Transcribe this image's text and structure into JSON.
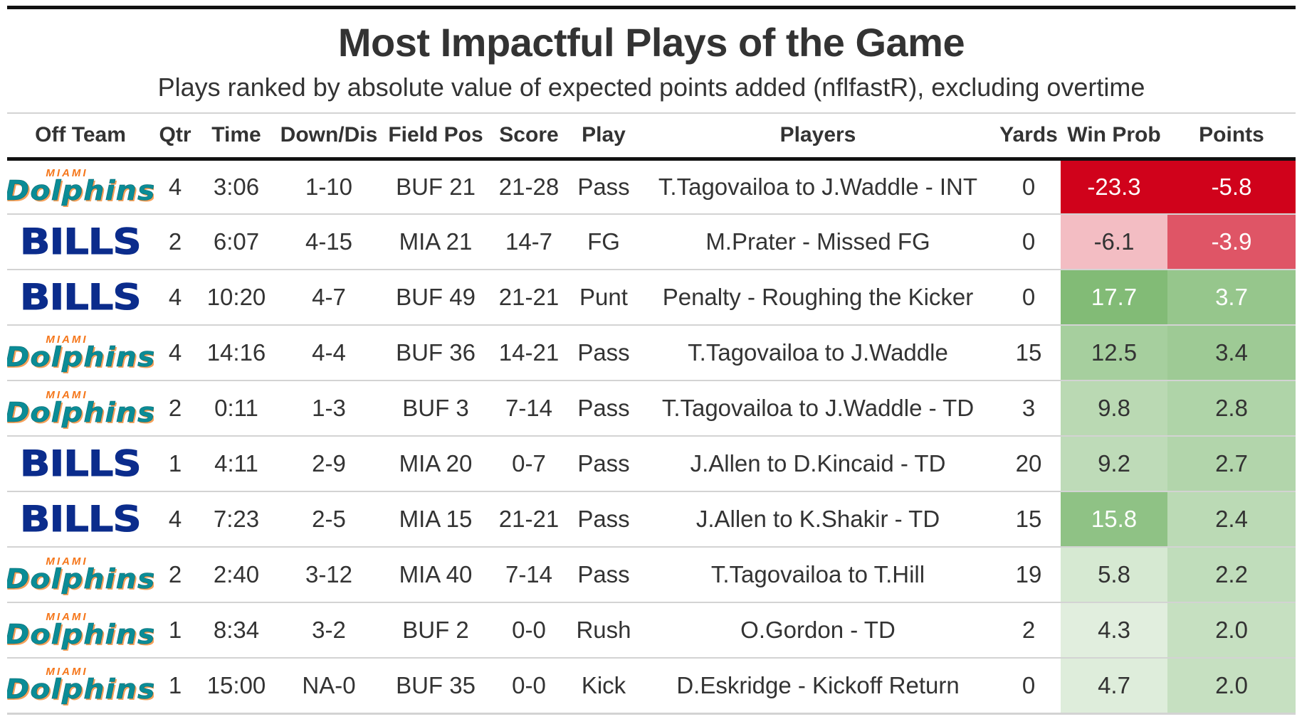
{
  "chart_data": {
    "type": "table",
    "title": "Most Impactful Plays of the Game",
    "subtitle": "Plays ranked by absolute value of expected points added (nflfastR), excluding overtime",
    "columns": [
      "Off Team",
      "Qtr",
      "Time",
      "Down/Dis",
      "Field Pos",
      "Score",
      "Play",
      "Players",
      "Yards",
      "Win Prob",
      "Points"
    ],
    "rows": [
      {
        "team": "MIAMI Dolphins",
        "team_key": "dolphins",
        "qtr": "4",
        "time": "3:06",
        "down": "1-10",
        "field": "BUF 21",
        "score": "21-28",
        "play": "Pass",
        "players": "T.Tagovailoa to J.Waddle - INT",
        "yards": "0",
        "wp": "-23.3",
        "pts": "-5.8"
      },
      {
        "team": "BILLS",
        "team_key": "bills",
        "qtr": "2",
        "time": "6:07",
        "down": "4-15",
        "field": "MIA 21",
        "score": "14-7",
        "play": "FG",
        "players": "M.Prater - Missed FG",
        "yards": "0",
        "wp": "-6.1",
        "pts": "-3.9"
      },
      {
        "team": "BILLS",
        "team_key": "bills",
        "qtr": "4",
        "time": "10:20",
        "down": "4-7",
        "field": "BUF 49",
        "score": "21-21",
        "play": "Punt",
        "players": "Penalty - Roughing the Kicker",
        "yards": "0",
        "wp": "17.7",
        "pts": "3.7"
      },
      {
        "team": "MIAMI Dolphins",
        "team_key": "dolphins",
        "qtr": "4",
        "time": "14:16",
        "down": "4-4",
        "field": "BUF 36",
        "score": "14-21",
        "play": "Pass",
        "players": "T.Tagovailoa to J.Waddle",
        "yards": "15",
        "wp": "12.5",
        "pts": "3.4"
      },
      {
        "team": "MIAMI Dolphins",
        "team_key": "dolphins",
        "qtr": "2",
        "time": "0:11",
        "down": "1-3",
        "field": "BUF 3",
        "score": "7-14",
        "play": "Pass",
        "players": "T.Tagovailoa to J.Waddle - TD",
        "yards": "3",
        "wp": "9.8",
        "pts": "2.8"
      },
      {
        "team": "BILLS",
        "team_key": "bills",
        "qtr": "1",
        "time": "4:11",
        "down": "2-9",
        "field": "MIA 20",
        "score": "0-7",
        "play": "Pass",
        "players": "J.Allen to D.Kincaid - TD",
        "yards": "20",
        "wp": "9.2",
        "pts": "2.7"
      },
      {
        "team": "BILLS",
        "team_key": "bills",
        "qtr": "4",
        "time": "7:23",
        "down": "2-5",
        "field": "MIA 15",
        "score": "21-21",
        "play": "Pass",
        "players": "J.Allen to K.Shakir - TD",
        "yards": "15",
        "wp": "15.8",
        "pts": "2.4"
      },
      {
        "team": "MIAMI Dolphins",
        "team_key": "dolphins",
        "qtr": "2",
        "time": "2:40",
        "down": "3-12",
        "field": "MIA 40",
        "score": "7-14",
        "play": "Pass",
        "players": "T.Tagovailoa to T.Hill",
        "yards": "19",
        "wp": "5.8",
        "pts": "2.2"
      },
      {
        "team": "MIAMI Dolphins",
        "team_key": "dolphins",
        "qtr": "1",
        "time": "8:34",
        "down": "3-2",
        "field": "BUF 2",
        "score": "0-0",
        "play": "Rush",
        "players": "O.Gordon - TD",
        "yards": "2",
        "wp": "4.3",
        "pts": "2.0"
      },
      {
        "team": "MIAMI Dolphins",
        "team_key": "dolphins",
        "qtr": "1",
        "time": "15:00",
        "down": "NA-0",
        "field": "BUF 35",
        "score": "0-0",
        "play": "Kick",
        "players": "D.Eskridge - Kickoff Return",
        "yards": "0",
        "wp": "4.7",
        "pts": "2.0"
      }
    ],
    "color_scale": {
      "negative": "#d0021b",
      "neutral": "#ffffff",
      "positive": "#5aa54b"
    }
  },
  "logos": {
    "bills": {
      "text": "BILLS",
      "color": "#0b2c8c"
    },
    "dolphins": {
      "small": "MIAMI",
      "big": "Dolphins",
      "color": "#0b8c96",
      "accent": "#f5761a"
    }
  }
}
